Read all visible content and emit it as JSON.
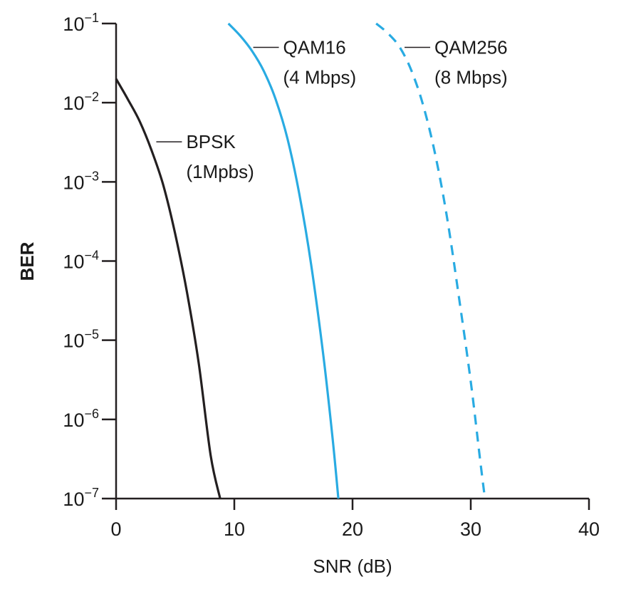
{
  "chart_data": {
    "type": "line",
    "title": "",
    "xlabel": "SNR (dB)",
    "ylabel": "BER",
    "xlim": [
      0,
      40
    ],
    "ylim": [
      1e-07,
      0.1
    ],
    "yscale": "log",
    "grid": false,
    "legend": "none",
    "x_ticks": [
      {
        "value": 0,
        "label": "0"
      },
      {
        "value": 10,
        "label": "10"
      },
      {
        "value": 20,
        "label": "20"
      },
      {
        "value": 30,
        "label": "30"
      },
      {
        "value": 40,
        "label": "40"
      }
    ],
    "y_ticks": [
      {
        "value": 0.1,
        "base": "10",
        "exp": "−1"
      },
      {
        "value": 0.01,
        "base": "10",
        "exp": "−2"
      },
      {
        "value": 0.001,
        "base": "10",
        "exp": "−3"
      },
      {
        "value": 0.0001,
        "base": "10",
        "exp": "−4"
      },
      {
        "value": 1e-05,
        "base": "10",
        "exp": "−5"
      },
      {
        "value": 1e-06,
        "base": "10",
        "exp": "−6"
      },
      {
        "value": 1e-07,
        "base": "10",
        "exp": "−7"
      }
    ],
    "series": [
      {
        "key": "bpsk",
        "color": "#231f20",
        "dash": "solid",
        "label_lines": [
          "BPSK",
          "(1Mpbs)"
        ],
        "label_anchor": {
          "x": 3.4,
          "y": 0.0032
        },
        "points": [
          {
            "x": 0.0,
            "y": 0.02
          },
          {
            "x": 1.0,
            "y": 0.011
          },
          {
            "x": 2.0,
            "y": 0.0058
          },
          {
            "x": 3.0,
            "y": 0.0025
          },
          {
            "x": 4.0,
            "y": 0.0009
          },
          {
            "x": 5.0,
            "y": 0.00022
          },
          {
            "x": 6.0,
            "y": 4e-05
          },
          {
            "x": 7.0,
            "y": 5e-06
          },
          {
            "x": 8.0,
            "y": 3.5e-07
          },
          {
            "x": 8.8,
            "y": 1e-07
          }
        ]
      },
      {
        "key": "qam16",
        "color": "#29abe2",
        "dash": "solid",
        "label_lines": [
          "QAM16",
          "(4 Mbps)"
        ],
        "label_anchor": {
          "x": 11.6,
          "y": 0.05
        },
        "points": [
          {
            "x": 9.5,
            "y": 0.1
          },
          {
            "x": 10.5,
            "y": 0.07
          },
          {
            "x": 11.5,
            "y": 0.045
          },
          {
            "x": 12.5,
            "y": 0.025
          },
          {
            "x": 13.5,
            "y": 0.011
          },
          {
            "x": 14.5,
            "y": 0.0035
          },
          {
            "x": 15.5,
            "y": 0.0007
          },
          {
            "x": 16.5,
            "y": 9e-05
          },
          {
            "x": 17.5,
            "y": 7e-06
          },
          {
            "x": 18.3,
            "y": 6e-07
          },
          {
            "x": 18.8,
            "y": 1e-07
          }
        ]
      },
      {
        "key": "qam256",
        "color": "#29abe2",
        "dash": "dashed",
        "label_lines": [
          "QAM256",
          "(8 Mbps)"
        ],
        "label_anchor": {
          "x": 24.4,
          "y": 0.05
        },
        "points": [
          {
            "x": 22.0,
            "y": 0.1
          },
          {
            "x": 23.0,
            "y": 0.075
          },
          {
            "x": 24.0,
            "y": 0.05
          },
          {
            "x": 25.0,
            "y": 0.025
          },
          {
            "x": 26.0,
            "y": 0.009
          },
          {
            "x": 27.0,
            "y": 0.0022
          },
          {
            "x": 28.0,
            "y": 0.00035
          },
          {
            "x": 29.0,
            "y": 3.5e-05
          },
          {
            "x": 30.0,
            "y": 3e-06
          },
          {
            "x": 30.8,
            "y": 3e-07
          },
          {
            "x": 31.2,
            "y": 1e-07
          }
        ]
      }
    ]
  }
}
